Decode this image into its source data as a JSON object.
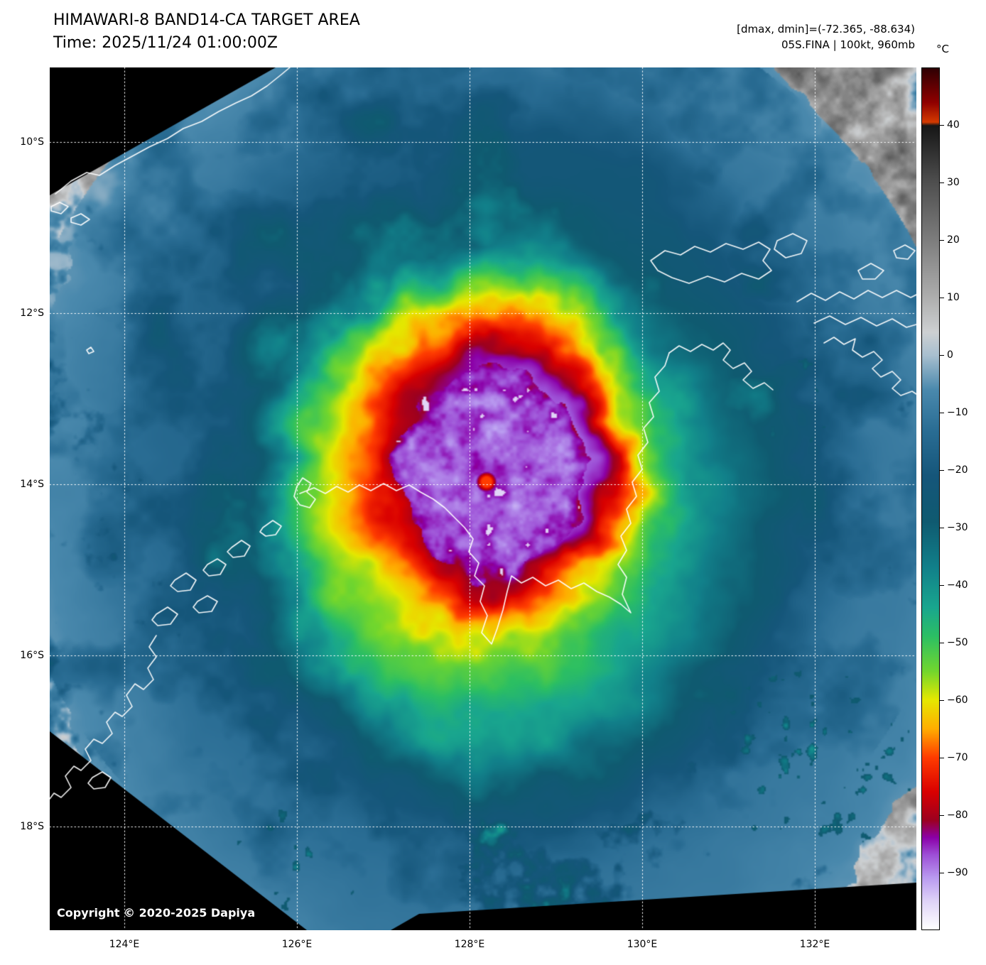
{
  "header": {
    "title": "HIMAWARI-8 BAND14-CA TARGET AREA",
    "time": "Time: 2025/11/24 01:00:00Z"
  },
  "annotations": {
    "dmax_dmin": "[dmax, dmin]=(-72.365, -88.634)",
    "storm_info": "05S.FINA | 100kt, 960mb"
  },
  "colorbar": {
    "unit": "°C",
    "ticks": [
      "40",
      "30",
      "20",
      "10",
      "0",
      "−10",
      "−20",
      "−30",
      "−40",
      "−50",
      "−60",
      "−70",
      "−80",
      "−90"
    ],
    "tick_values": [
      40,
      30,
      20,
      10,
      0,
      -10,
      -20,
      -30,
      -40,
      -50,
      -60,
      -70,
      -80,
      -90
    ],
    "scale_max": 50,
    "scale_min": -100,
    "palette": [
      {
        "t": 50,
        "c": "#2e0003"
      },
      {
        "t": 44,
        "c": "#8f0000"
      },
      {
        "t": 40.6,
        "c": "#d43a00"
      },
      {
        "t": 40,
        "c": "#161616"
      },
      {
        "t": 30,
        "c": "#4f4f4f"
      },
      {
        "t": 20,
        "c": "#7d7d7d"
      },
      {
        "t": 10,
        "c": "#aeaeae"
      },
      {
        "t": 4,
        "c": "#cdd0d2"
      },
      {
        "t": 0,
        "c": "#a8bfcf"
      },
      {
        "t": -6,
        "c": "#4a89ad"
      },
      {
        "t": -13,
        "c": "#2a6d94"
      },
      {
        "t": -21,
        "c": "#15567a"
      },
      {
        "t": -29,
        "c": "#0f5a70"
      },
      {
        "t": -37,
        "c": "#11808a"
      },
      {
        "t": -44,
        "c": "#19a68e"
      },
      {
        "t": -49,
        "c": "#2cbf63"
      },
      {
        "t": -55,
        "c": "#71d62e"
      },
      {
        "t": -60,
        "c": "#e5e800"
      },
      {
        "t": -65,
        "c": "#ffae00"
      },
      {
        "t": -70,
        "c": "#ff3c00"
      },
      {
        "t": -76,
        "c": "#d90000"
      },
      {
        "t": -81,
        "c": "#9c0020"
      },
      {
        "t": -84,
        "c": "#8b00a8"
      },
      {
        "t": -87,
        "c": "#9d4fd6"
      },
      {
        "t": -91,
        "c": "#b99af0"
      },
      {
        "t": -95,
        "c": "#ded2f7"
      },
      {
        "t": -100,
        "c": "#ffffff"
      }
    ]
  },
  "map": {
    "lat_labels": [
      "10°S",
      "12°S",
      "14°S",
      "16°S",
      "18°S"
    ],
    "lon_labels": [
      "124°E",
      "126°E",
      "128°E",
      "130°E",
      "132°E"
    ],
    "copyright": "Copyright © 2020-2025 Dapiya",
    "grid_color": "#ffffff",
    "coast_color": "#ffffff"
  }
}
